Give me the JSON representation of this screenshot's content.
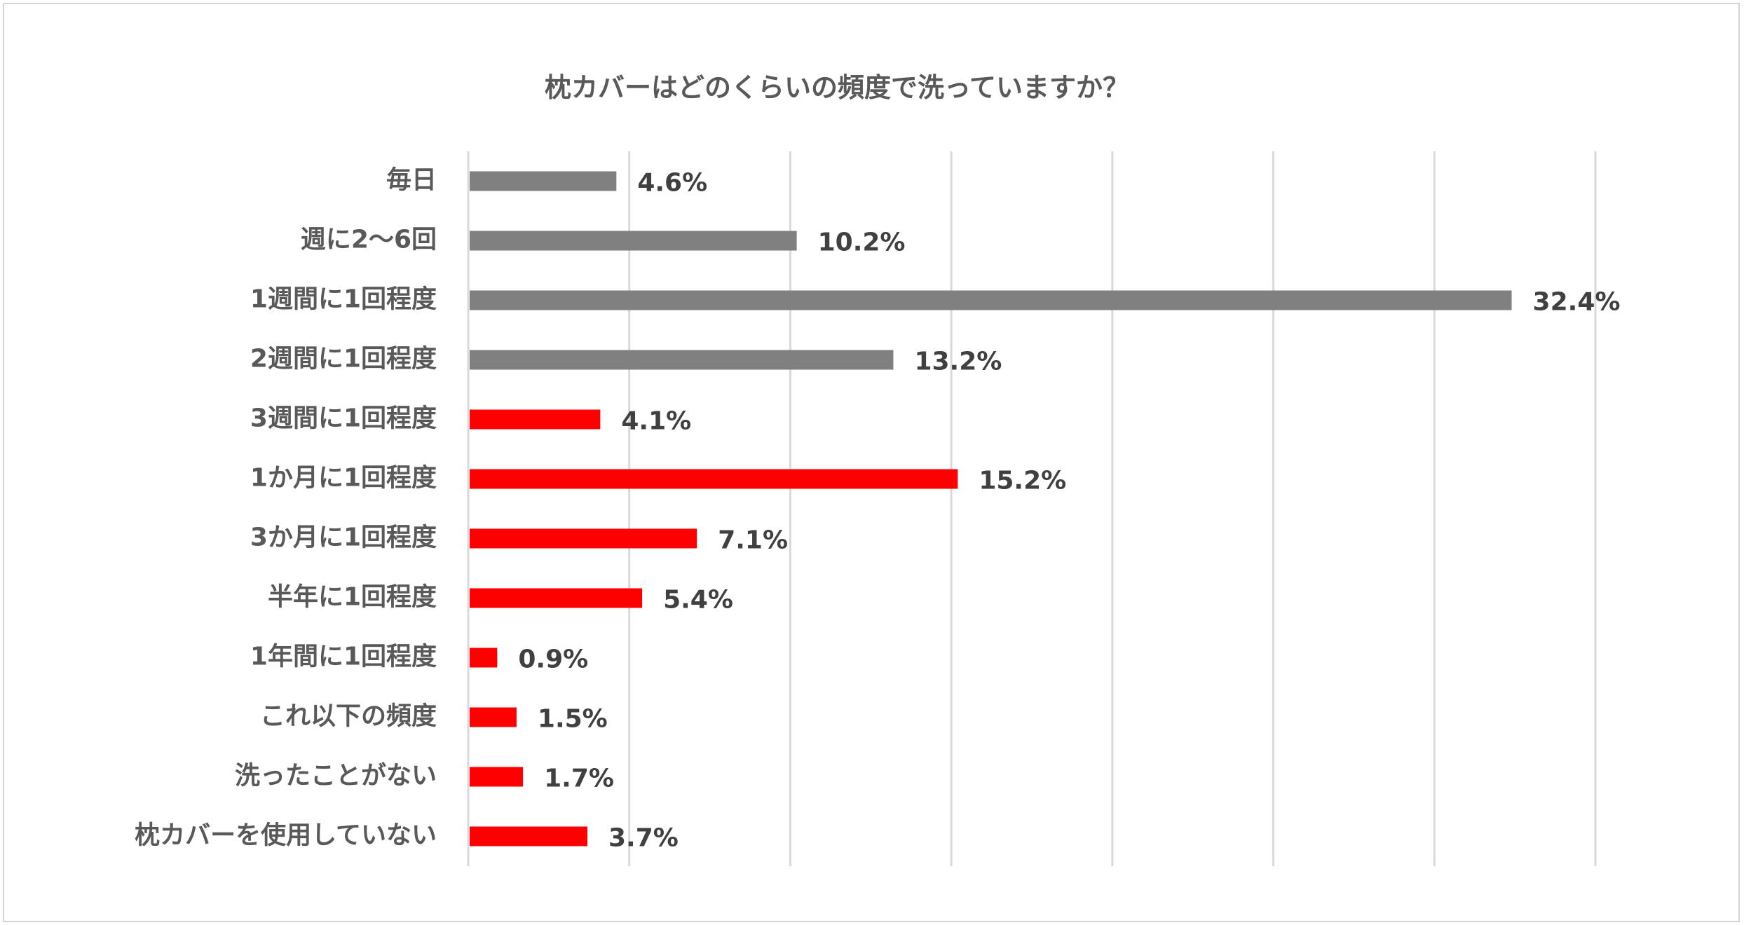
{
  "chart_data": {
    "type": "bar",
    "orientation": "horizontal",
    "title": "枕カバーはどのくらいの頻度で洗っていますか？",
    "categories": [
      "毎日",
      "週に2～6回",
      "1週間に1回程度",
      "2週間に1回程度",
      "3週間に1回程度",
      "1か月に1回程度",
      "3か月に1回程度",
      "半年に1回程度",
      "1年間に1回程度",
      "これ以下の頻度",
      "洗ったことがない",
      "枕カバーを使用していない"
    ],
    "values": [
      4.6,
      10.2,
      32.4,
      13.2,
      4.1,
      15.2,
      7.1,
      5.4,
      0.9,
      1.5,
      1.7,
      3.7
    ],
    "value_labels": [
      "4.6%",
      "10.2%",
      "32.4%",
      "13.2%",
      "4.1%",
      "15.2%",
      "7.1%",
      "5.4%",
      "0.9%",
      "1.5%",
      "1.7%",
      "3.7%"
    ],
    "bar_colors": [
      "#808080",
      "#808080",
      "#808080",
      "#808080",
      "#ff0000",
      "#ff0000",
      "#ff0000",
      "#ff0000",
      "#ff0000",
      "#ff0000",
      "#ff0000",
      "#ff0000"
    ],
    "xlim": [
      0,
      35
    ],
    "gridlines": true,
    "unit": "%"
  }
}
